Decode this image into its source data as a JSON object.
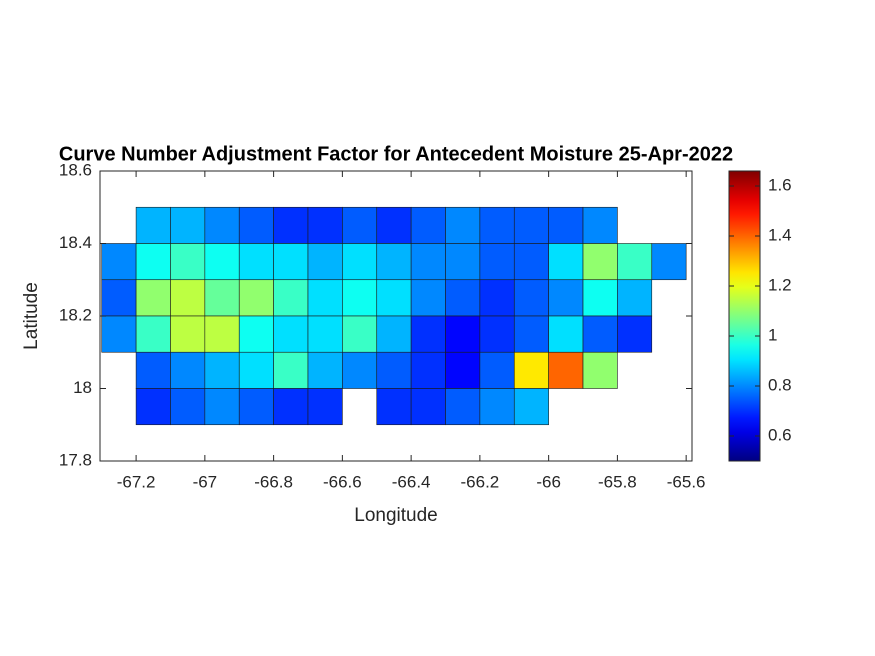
{
  "chart_data": {
    "type": "heatmap",
    "title": "Curve Number Adjustment Factor for Antecedent Moisture 25-Apr-2022",
    "x_label": "Longitude",
    "y_label": "Latitude",
    "xlim": [
      -67.305,
      -65.583
    ],
    "ylim": [
      17.8,
      18.6
    ],
    "xticks": [
      -67.2,
      -67,
      -66.8,
      -66.6,
      -66.4,
      -66.2,
      -66,
      -65.8,
      -65.6
    ],
    "yticks": [
      17.8,
      18,
      18.2,
      18.4,
      18.6
    ],
    "colormap": "jet",
    "clim": [
      0.5,
      1.66
    ],
    "colorbar_ticks": [
      0.6,
      0.8,
      1,
      1.2,
      1.4,
      1.6
    ],
    "cell_size": [
      0.1,
      0.1
    ],
    "x": [
      -67.25,
      -67.15,
      -67.05,
      -66.95,
      -66.85,
      -66.75,
      -66.65,
      -66.55,
      -66.45,
      -66.35,
      -66.25,
      -66.15,
      -66.05,
      -65.95,
      -65.85,
      -65.75,
      -65.65
    ],
    "y": [
      18.45,
      18.35,
      18.25,
      18.15,
      18.05,
      17.95
    ],
    "values": [
      [
        null,
        0.85,
        0.85,
        0.8,
        0.75,
        0.7,
        0.7,
        0.75,
        0.7,
        0.75,
        0.8,
        0.75,
        0.75,
        0.75,
        0.8,
        null,
        null
      ],
      [
        0.8,
        0.95,
        1.0,
        0.95,
        0.9,
        0.9,
        0.85,
        0.9,
        0.85,
        0.8,
        0.8,
        0.75,
        0.75,
        0.9,
        1.1,
        1.0,
        0.8
      ],
      [
        0.75,
        1.1,
        1.15,
        1.05,
        1.1,
        1.0,
        0.9,
        0.95,
        0.9,
        0.8,
        0.75,
        0.7,
        0.75,
        0.8,
        0.95,
        0.85,
        null
      ],
      [
        0.8,
        1.0,
        1.15,
        1.15,
        0.95,
        0.9,
        0.9,
        1.0,
        0.85,
        0.7,
        0.65,
        0.7,
        0.75,
        0.9,
        0.75,
        0.7,
        null
      ],
      [
        null,
        0.75,
        0.8,
        0.85,
        0.9,
        1.0,
        0.85,
        0.8,
        0.75,
        0.7,
        0.65,
        0.75,
        1.25,
        1.4,
        1.1,
        null,
        null
      ],
      [
        null,
        0.7,
        0.75,
        0.8,
        0.75,
        0.7,
        0.7,
        null,
        0.7,
        0.7,
        0.75,
        0.8,
        0.85,
        null,
        null,
        null,
        null
      ]
    ]
  }
}
